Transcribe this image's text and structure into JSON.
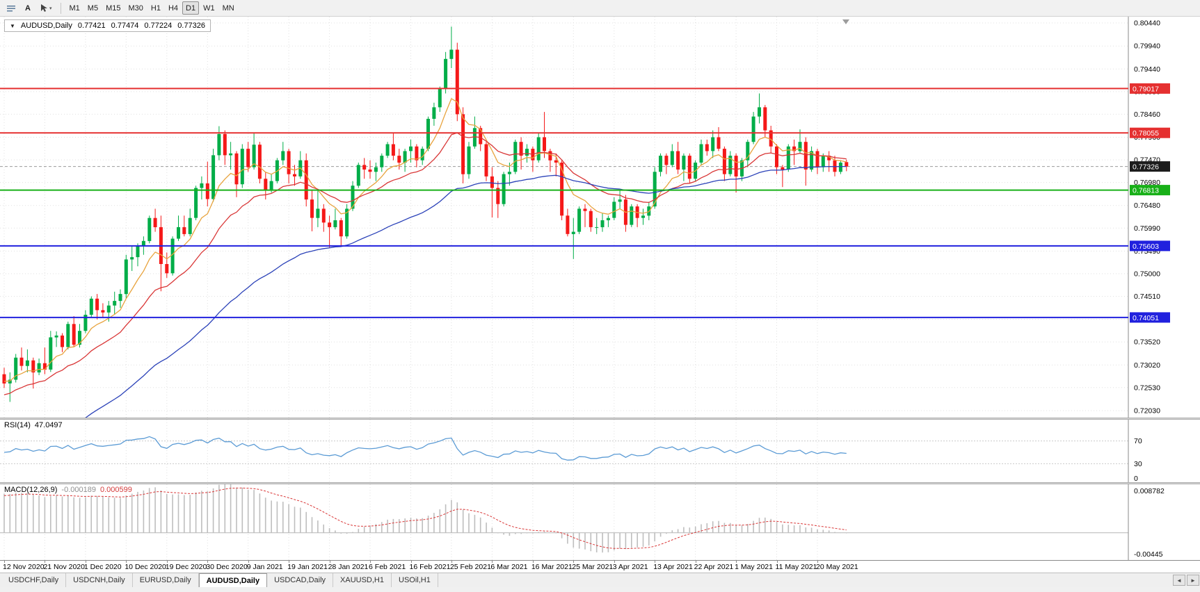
{
  "toolbar": {
    "text_tool": "A",
    "timeframes": [
      "M1",
      "M5",
      "M15",
      "M30",
      "H1",
      "H4",
      "D1",
      "W1",
      "MN"
    ],
    "active_timeframe": "D1"
  },
  "icons": {
    "symbol_collapse": "▼",
    "dropdown_caret": "▾",
    "scroll_left": "◄",
    "scroll_right": "►"
  },
  "tabs": [
    "USDCHF,Daily",
    "USDCNH,Daily",
    "EURUSD,Daily",
    "AUDUSD,Daily",
    "USDCAD,Daily",
    "XAUUSD,H1",
    "USOil,H1"
  ],
  "active_tab": "AUDUSD,Daily",
  "chart_data": {
    "type": "candlestick",
    "symbol_line": "AUDUSD,Daily",
    "ohlc_display": {
      "open": "0.77421",
      "high": "0.77474",
      "low": "0.77224",
      "close": "0.77326"
    },
    "current_price": "0.77326",
    "y_top": 0.8044,
    "y_bottom": 0.7203,
    "y_axis_labels": [
      "0.80440",
      "0.79940",
      "0.79440",
      "0.78950",
      "0.78460",
      "0.77960",
      "0.77470",
      "0.76980",
      "0.76480",
      "0.75990",
      "0.75490",
      "0.75000",
      "0.74510",
      "0.74010",
      "0.73520",
      "0.73020",
      "0.72530",
      "0.72030"
    ],
    "x_labels": [
      "12 Nov 2020",
      "21 Nov 2020",
      "1 Dec 2020",
      "10 Dec 2020",
      "19 Dec 2020",
      "30 Dec 2020",
      "9 Jan 2021",
      "19 Jan 2021",
      "28 Jan 2021",
      "6 Feb 2021",
      "16 Feb 2021",
      "25 Feb 2021",
      "6 Mar 2021",
      "16 Mar 2021",
      "25 Mar 2021",
      "3 Apr 2021",
      "13 Apr 2021",
      "22 Apr 2021",
      "1 May 2021",
      "11 May 2021",
      "20 May 2021"
    ],
    "candles_per_label": 7,
    "bull_color": "#00AD48",
    "bear_color": "#F51818",
    "grid_color": "#e0e0e0",
    "horizontal_lines": [
      {
        "price": 0.79017,
        "label": "0.79017",
        "color": "#E53030"
      },
      {
        "price": 0.78055,
        "label": "0.78055",
        "color": "#E53030"
      },
      {
        "price": 0.76813,
        "label": "0.76813",
        "color": "#18B018"
      },
      {
        "price": 0.75603,
        "label": "0.75603",
        "color": "#2121DE"
      },
      {
        "price": 0.74051,
        "label": "0.74051",
        "color": "#2121DE"
      }
    ],
    "moving_averages": [
      {
        "name": "fast",
        "period": 8,
        "seed": 0.7268,
        "color": "#E8A33D"
      },
      {
        "name": "medium",
        "period": 20,
        "seed": 0.7235,
        "color": "#D93636"
      },
      {
        "name": "slow",
        "period": 55,
        "seed": 0.708,
        "color": "#2A41B8"
      }
    ],
    "candles": [
      [
        0.7282,
        0.7296,
        0.7252,
        0.7262
      ],
      [
        0.7262,
        0.7286,
        0.7222,
        0.727
      ],
      [
        0.727,
        0.7326,
        0.7264,
        0.7318
      ],
      [
        0.7318,
        0.734,
        0.729,
        0.73
      ],
      [
        0.73,
        0.7336,
        0.7286,
        0.7312
      ],
      [
        0.7312,
        0.7318,
        0.7251,
        0.7286
      ],
      [
        0.7286,
        0.7316,
        0.728,
        0.7306
      ],
      [
        0.7306,
        0.734,
        0.7282,
        0.7292
      ],
      [
        0.7292,
        0.7376,
        0.7287,
        0.7362
      ],
      [
        0.7362,
        0.7375,
        0.7341,
        0.7366
      ],
      [
        0.7366,
        0.7371,
        0.733,
        0.7341
      ],
      [
        0.7341,
        0.7396,
        0.7336,
        0.7391
      ],
      [
        0.7391,
        0.7408,
        0.7341,
        0.7346
      ],
      [
        0.7346,
        0.7391,
        0.734,
        0.7376
      ],
      [
        0.7376,
        0.7421,
        0.7371,
        0.7411
      ],
      [
        0.7411,
        0.7451,
        0.7406,
        0.7446
      ],
      [
        0.7446,
        0.7456,
        0.7401,
        0.7421
      ],
      [
        0.7421,
        0.7436,
        0.7406,
        0.7416
      ],
      [
        0.7416,
        0.7441,
        0.7396,
        0.7431
      ],
      [
        0.7431,
        0.7461,
        0.7411,
        0.7441
      ],
      [
        0.7441,
        0.7466,
        0.7426,
        0.7456
      ],
      [
        0.7456,
        0.7541,
        0.7446,
        0.7531
      ],
      [
        0.7531,
        0.7561,
        0.7506,
        0.7536
      ],
      [
        0.7536,
        0.7566,
        0.7516,
        0.7561
      ],
      [
        0.7561,
        0.7581,
        0.7541,
        0.7571
      ],
      [
        0.7571,
        0.7626,
        0.7566,
        0.7621
      ],
      [
        0.7621,
        0.7641,
        0.7591,
        0.7601
      ],
      [
        0.7601,
        0.7626,
        0.7462,
        0.7521
      ],
      [
        0.7521,
        0.7546,
        0.7491,
        0.7501
      ],
      [
        0.7501,
        0.7581,
        0.7496,
        0.7576
      ],
      [
        0.7576,
        0.7626,
        0.7571,
        0.7601
      ],
      [
        0.7601,
        0.7626,
        0.7581,
        0.7586
      ],
      [
        0.7586,
        0.7641,
        0.7581,
        0.7621
      ],
      [
        0.7621,
        0.7691,
        0.7616,
        0.7686
      ],
      [
        0.7686,
        0.7711,
        0.7661,
        0.7696
      ],
      [
        0.7696,
        0.7743,
        0.7646,
        0.7662
      ],
      [
        0.7662,
        0.7771,
        0.7656,
        0.7757
      ],
      [
        0.7757,
        0.782,
        0.7746,
        0.7803
      ],
      [
        0.7803,
        0.7811,
        0.7736,
        0.7757
      ],
      [
        0.7757,
        0.7786,
        0.7726,
        0.7761
      ],
      [
        0.7761,
        0.7766,
        0.7666,
        0.7694
      ],
      [
        0.7694,
        0.7781,
        0.7686,
        0.7771
      ],
      [
        0.7771,
        0.7786,
        0.7721,
        0.7731
      ],
      [
        0.7731,
        0.7805,
        0.7726,
        0.778
      ],
      [
        0.778,
        0.7786,
        0.7696,
        0.7706
      ],
      [
        0.7706,
        0.7721,
        0.7661,
        0.7681
      ],
      [
        0.7681,
        0.7716,
        0.7676,
        0.7701
      ],
      [
        0.7701,
        0.7751,
        0.7696,
        0.7746
      ],
      [
        0.7746,
        0.7786,
        0.7736,
        0.7766
      ],
      [
        0.7766,
        0.7771,
        0.7696,
        0.7716
      ],
      [
        0.7716,
        0.7736,
        0.7691,
        0.7711
      ],
      [
        0.7711,
        0.7766,
        0.7706,
        0.7746
      ],
      [
        0.7746,
        0.7761,
        0.7646,
        0.7661
      ],
      [
        0.7661,
        0.7681,
        0.7592,
        0.7621
      ],
      [
        0.7621,
        0.7681,
        0.7601,
        0.7641
      ],
      [
        0.7641,
        0.7651,
        0.7591,
        0.7611
      ],
      [
        0.7611,
        0.7626,
        0.7557,
        0.7601
      ],
      [
        0.7601,
        0.7641,
        0.7596,
        0.7616
      ],
      [
        0.7616,
        0.7621,
        0.7561,
        0.7581
      ],
      [
        0.7581,
        0.7651,
        0.7576,
        0.7641
      ],
      [
        0.7641,
        0.7701,
        0.7636,
        0.7691
      ],
      [
        0.7691,
        0.7741,
        0.7686,
        0.7736
      ],
      [
        0.7736,
        0.7751,
        0.7706,
        0.7726
      ],
      [
        0.7726,
        0.7746,
        0.7706,
        0.7721
      ],
      [
        0.7721,
        0.7741,
        0.7701,
        0.7731
      ],
      [
        0.7731,
        0.7761,
        0.7721,
        0.7756
      ],
      [
        0.7756,
        0.7786,
        0.7751,
        0.7781
      ],
      [
        0.7781,
        0.7806,
        0.7746,
        0.7756
      ],
      [
        0.7756,
        0.7771,
        0.7726,
        0.7741
      ],
      [
        0.7741,
        0.7771,
        0.7721,
        0.7766
      ],
      [
        0.7766,
        0.7791,
        0.7741,
        0.7776
      ],
      [
        0.7776,
        0.7781,
        0.7731,
        0.7746
      ],
      [
        0.7746,
        0.7776,
        0.7736,
        0.7771
      ],
      [
        0.7771,
        0.7841,
        0.7766,
        0.7836
      ],
      [
        0.7836,
        0.7871,
        0.7821,
        0.7861
      ],
      [
        0.7861,
        0.7906,
        0.7851,
        0.7901
      ],
      [
        0.7901,
        0.7981,
        0.7891,
        0.7966
      ],
      [
        0.7966,
        0.8036,
        0.7946,
        0.7986
      ],
      [
        0.7986,
        0.8001,
        0.7831,
        0.7846
      ],
      [
        0.7846,
        0.7861,
        0.7696,
        0.7716
      ],
      [
        0.7716,
        0.7786,
        0.7706,
        0.7776
      ],
      [
        0.7776,
        0.7841,
        0.7771,
        0.7816
      ],
      [
        0.7816,
        0.7821,
        0.7766,
        0.7781
      ],
      [
        0.7781,
        0.7786,
        0.7701,
        0.7711
      ],
      [
        0.7711,
        0.7731,
        0.7622,
        0.7686
      ],
      [
        0.7686,
        0.7701,
        0.7621,
        0.7651
      ],
      [
        0.7651,
        0.7721,
        0.7646,
        0.7716
      ],
      [
        0.7716,
        0.7741,
        0.7691,
        0.7721
      ],
      [
        0.7721,
        0.7791,
        0.7716,
        0.7786
      ],
      [
        0.7786,
        0.7796,
        0.7726,
        0.7756
      ],
      [
        0.7756,
        0.7781,
        0.7741,
        0.7771
      ],
      [
        0.7771,
        0.7776,
        0.7721,
        0.7746
      ],
      [
        0.7746,
        0.7806,
        0.7741,
        0.7796
      ],
      [
        0.7796,
        0.7851,
        0.7751,
        0.7766
      ],
      [
        0.7766,
        0.7771,
        0.7721,
        0.7746
      ],
      [
        0.7746,
        0.7761,
        0.7711,
        0.7741
      ],
      [
        0.7741,
        0.7746,
        0.7616,
        0.7626
      ],
      [
        0.7626,
        0.7641,
        0.7581,
        0.7586
      ],
      [
        0.7586,
        0.7621,
        0.7532,
        0.7591
      ],
      [
        0.7591,
        0.7646,
        0.7586,
        0.7641
      ],
      [
        0.7641,
        0.7651,
        0.7601,
        0.7636
      ],
      [
        0.7636,
        0.7641,
        0.7591,
        0.7601
      ],
      [
        0.7601,
        0.7621,
        0.7586,
        0.7601
      ],
      [
        0.7601,
        0.7631,
        0.7591,
        0.7616
      ],
      [
        0.7616,
        0.7626,
        0.7601,
        0.7621
      ],
      [
        0.7621,
        0.7666,
        0.7616,
        0.7656
      ],
      [
        0.7656,
        0.7681,
        0.7641,
        0.7661
      ],
      [
        0.7661,
        0.7671,
        0.7591,
        0.7606
      ],
      [
        0.7606,
        0.7651,
        0.7601,
        0.7646
      ],
      [
        0.7646,
        0.7651,
        0.7601,
        0.7621
      ],
      [
        0.7621,
        0.7641,
        0.7606,
        0.7626
      ],
      [
        0.7626,
        0.7656,
        0.7616,
        0.7646
      ],
      [
        0.7646,
        0.7731,
        0.7641,
        0.7721
      ],
      [
        0.7721,
        0.7761,
        0.7711,
        0.7756
      ],
      [
        0.7756,
        0.7761,
        0.7716,
        0.7736
      ],
      [
        0.7736,
        0.7781,
        0.7731,
        0.7766
      ],
      [
        0.7766,
        0.7786,
        0.7716,
        0.7726
      ],
      [
        0.7726,
        0.7761,
        0.7701,
        0.7756
      ],
      [
        0.7756,
        0.7761,
        0.7696,
        0.7706
      ],
      [
        0.7706,
        0.7746,
        0.7701,
        0.7741
      ],
      [
        0.7741,
        0.7791,
        0.7736,
        0.7781
      ],
      [
        0.7781,
        0.7791,
        0.7756,
        0.7766
      ],
      [
        0.7766,
        0.7811,
        0.7751,
        0.7796
      ],
      [
        0.7796,
        0.7818,
        0.7766,
        0.7771
      ],
      [
        0.7771,
        0.7776,
        0.7701,
        0.7716
      ],
      [
        0.7716,
        0.7766,
        0.7711,
        0.7756
      ],
      [
        0.7756,
        0.7761,
        0.7676,
        0.7711
      ],
      [
        0.7711,
        0.7751,
        0.7701,
        0.7746
      ],
      [
        0.7746,
        0.7791,
        0.7731,
        0.7786
      ],
      [
        0.7786,
        0.7851,
        0.7781,
        0.7841
      ],
      [
        0.7841,
        0.7891,
        0.7826,
        0.7861
      ],
      [
        0.7861,
        0.7866,
        0.7796,
        0.7811
      ],
      [
        0.7811,
        0.7821,
        0.7761,
        0.7776
      ],
      [
        0.7776,
        0.7781,
        0.7716,
        0.7731
      ],
      [
        0.7731,
        0.7736,
        0.7688,
        0.7726
      ],
      [
        0.7726,
        0.7781,
        0.7721,
        0.7776
      ],
      [
        0.7776,
        0.7791,
        0.7736,
        0.7766
      ],
      [
        0.7766,
        0.7813,
        0.7761,
        0.7786
      ],
      [
        0.7786,
        0.7796,
        0.7691,
        0.7726
      ],
      [
        0.7726,
        0.7776,
        0.7721,
        0.7766
      ],
      [
        0.7766,
        0.7771,
        0.7716,
        0.7731
      ],
      [
        0.7731,
        0.7761,
        0.7721,
        0.7756
      ],
      [
        0.7756,
        0.7766,
        0.7721,
        0.7746
      ],
      [
        0.7746,
        0.7756,
        0.7711,
        0.7721
      ],
      [
        0.7721,
        0.7746,
        0.7716,
        0.7741
      ],
      [
        0.77421,
        0.77474,
        0.77224,
        0.77326
      ]
    ],
    "indicators": {
      "rsi": {
        "label": "RSI(14)",
        "value": "47.0497",
        "period": 14,
        "levels": [
          70,
          30
        ],
        "axis_labels": [
          "70",
          "30",
          "0"
        ],
        "color": "#5B9BD5"
      },
      "macd": {
        "label": "MACD(12,26,9)",
        "main_value": "-0.000189",
        "signal_value": "0.000599",
        "fast": 12,
        "slow": 26,
        "signal": 9,
        "fast_seed": 0.719,
        "slow_seed": 0.711,
        "signal_seed": 0.0075,
        "axis_top": 0.008782,
        "axis_bottom": -0.00445,
        "axis_top_label": "0.008782",
        "axis_bottom_label": "-0.00445",
        "histogram_color": "#BEBEBE",
        "signal_color": "#D93636"
      }
    }
  }
}
